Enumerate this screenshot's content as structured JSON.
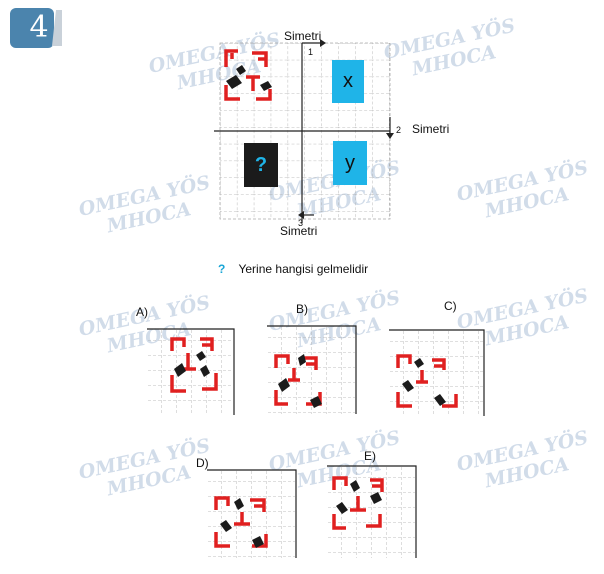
{
  "question_number": "4",
  "watermark": {
    "line1": "OMEGA YÖS",
    "line2": "MHOCA"
  },
  "diagram": {
    "axis_label_top": "Simetri",
    "axis_label_right": "Simetri",
    "axis_label_bottom": "Simetri",
    "axis_num_1": "1",
    "axis_num_2": "2",
    "axis_num_3": "3",
    "box_x": "x",
    "box_y": "y",
    "box_q": "?"
  },
  "prompt": {
    "mark": "?",
    "text": "Yerine hangisi gelmelidir"
  },
  "options": [
    {
      "label": "A)"
    },
    {
      "label": "B)"
    },
    {
      "label": "C)"
    },
    {
      "label": "D)"
    },
    {
      "label": "E)"
    }
  ],
  "colors": {
    "red": "#e02020",
    "blue": "#1fb4e8",
    "dark": "#1b1b1b",
    "grid": "#aaaaaa",
    "badge": "#4b84ad"
  }
}
